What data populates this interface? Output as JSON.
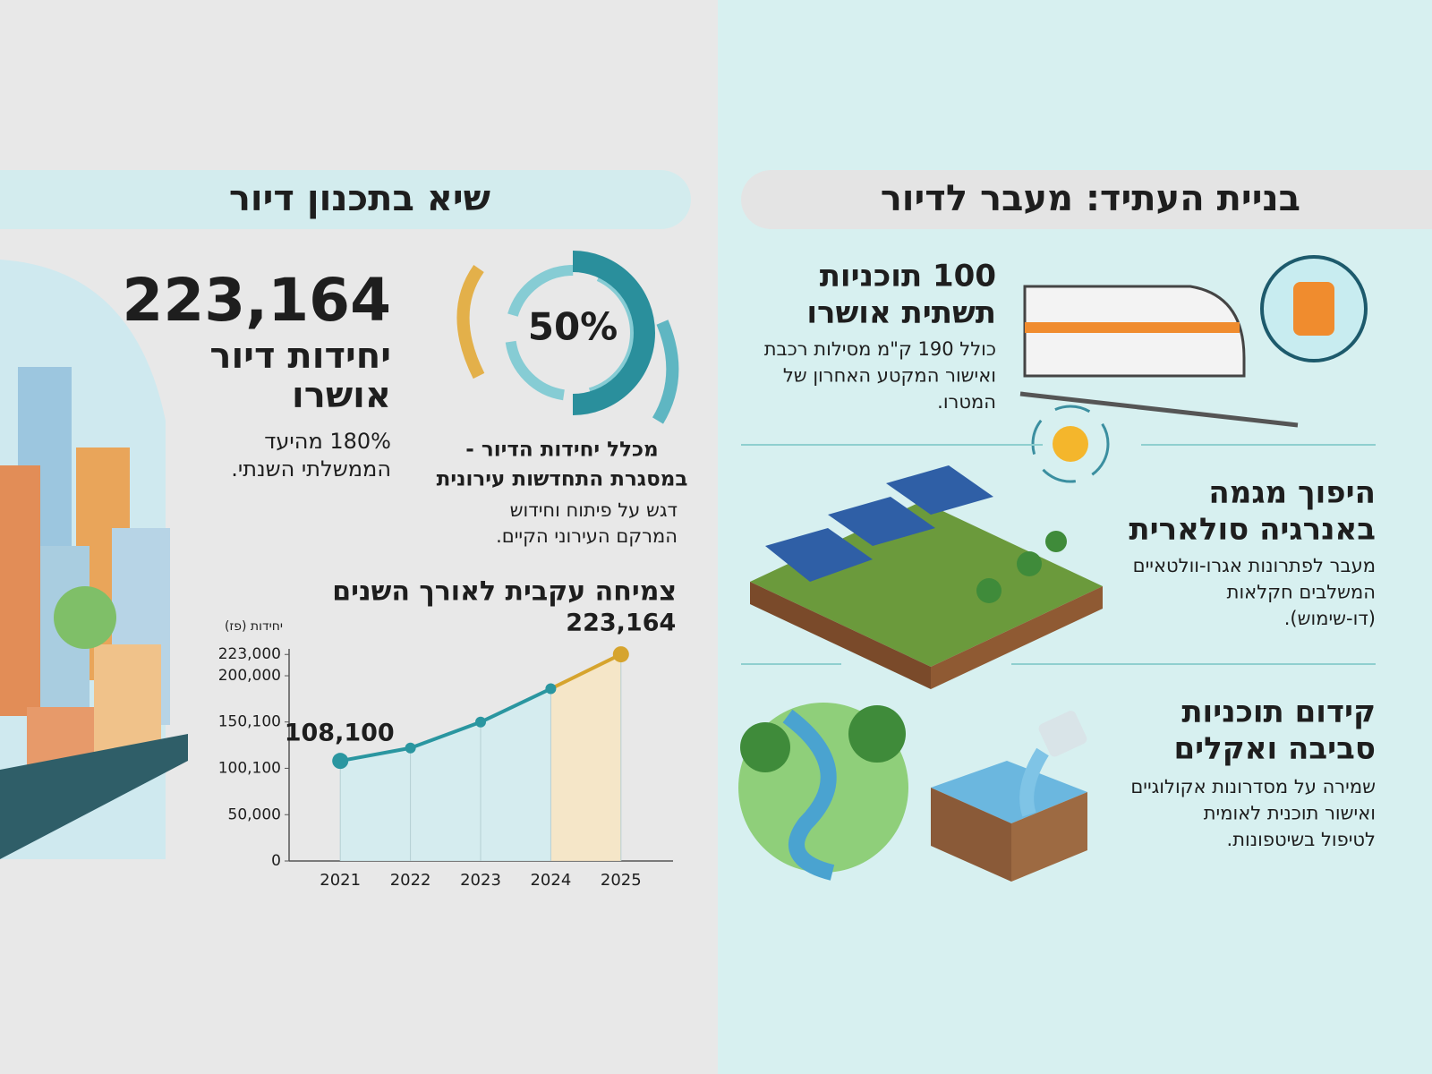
{
  "left": {
    "title": "שיא בתכנון דיור",
    "big_number": "223,164",
    "big_label": [
      "יחידות דיור",
      "אושרו"
    ],
    "big_note": [
      "180% מהיעד",
      "הממשלתי השנתי."
    ],
    "donut": {
      "value": 50,
      "label": "50%"
    },
    "donut_caption": [
      "מכלל יחידות הדיור -",
      "במסגרת התחדשות עירונית"
    ],
    "donut_note": [
      "דגש על פיתוח וחידוש",
      "המרקם העירוני הקיים."
    ]
  },
  "chart_data": {
    "type": "line",
    "title": "צמיחה עקבית לאורך השנים",
    "y_label": "יחידות (פז)",
    "categories": [
      "2021",
      "2022",
      "2023",
      "2024",
      "2025"
    ],
    "values": [
      108100,
      122000,
      150000,
      186000,
      223164
    ],
    "value_labels": [
      "108,100",
      null,
      null,
      null,
      "223,164"
    ],
    "color": "#2a96a0",
    "highlight_color": "#d6a42e",
    "ylim": [
      0,
      230000
    ],
    "yticks": [
      0,
      {
        "value": 50000,
        "label": "50,000"
      },
      {
        "value": 100100,
        "label": "100,100"
      },
      {
        "value": 150100,
        "label": "150,100"
      },
      {
        "value": 200000,
        "label": "200,000"
      },
      {
        "value": 223000,
        "label": "223,000"
      }
    ]
  },
  "right": {
    "title": "בניית העתיד: מעבר לדיור",
    "items": [
      {
        "title": [
          "100 תוכניות",
          "תשתית אושרו"
        ],
        "text": [
          "כולל 190 ק\"מ מסילות רכבת",
          "ואישור המקטע האחרון של",
          "המטרו."
        ]
      },
      {
        "title": [
          "היפוך מגמה",
          "באנרגיה סולארית"
        ],
        "text": [
          "מעבר לפתרונות אגרו-וולטאיים",
          "המשלבים חקלאות",
          "(דו-שימוש)."
        ]
      },
      {
        "title": [
          "קידום תוכניות",
          "סביבה ואקלים"
        ],
        "text": [
          "שמירה על מסדרונות אקולוגיים",
          "ואישור תוכנית לאומית",
          "לטיפול בשיטפונות."
        ]
      }
    ]
  }
}
